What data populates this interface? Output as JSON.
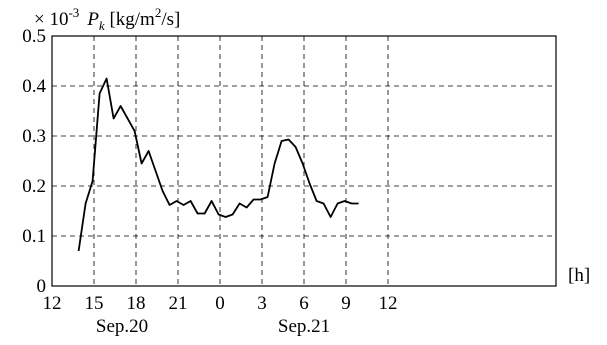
{
  "chart_data": {
    "type": "line",
    "ylabel": {
      "multiplier_symbol": "× 10",
      "multiplier_exponent": "-3",
      "variable": "P",
      "variable_subscript": "k",
      "unit_prefix": " [kg/m",
      "unit_exponent": "2",
      "unit_suffix": "/s]"
    },
    "xlabel": "[h]",
    "xlim": [
      12,
      48
    ],
    "ylim": [
      0,
      0.5
    ],
    "x_ticks": [
      {
        "value": 12,
        "label": "12"
      },
      {
        "value": 15,
        "label": "15"
      },
      {
        "value": 18,
        "label": "18"
      },
      {
        "value": 21,
        "label": "21"
      },
      {
        "value": 24,
        "label": "0"
      },
      {
        "value": 27,
        "label": "3"
      },
      {
        "value": 30,
        "label": "6"
      },
      {
        "value": 33,
        "label": "9"
      },
      {
        "value": 36,
        "label": "12"
      }
    ],
    "y_ticks": [
      {
        "value": 0,
        "label": "0"
      },
      {
        "value": 0.1,
        "label": "0.1"
      },
      {
        "value": 0.2,
        "label": "0.2"
      },
      {
        "value": 0.3,
        "label": "0.3"
      },
      {
        "value": 0.4,
        "label": "0.4"
      },
      {
        "value": 0.5,
        "label": "0.5"
      }
    ],
    "date_labels": [
      {
        "at": 17,
        "label": "Sep.20"
      },
      {
        "at": 30,
        "label": "Sep.21"
      }
    ],
    "grid": true,
    "series": [
      {
        "x": [
          13.9,
          14.4,
          14.9,
          15.4,
          15.9,
          16.4,
          16.9,
          17.4,
          17.9,
          18.4,
          18.9,
          19.4,
          19.9,
          20.4,
          20.9,
          21.4,
          21.9,
          22.4,
          22.9,
          23.4,
          23.9,
          24.4,
          24.9,
          25.4,
          25.9,
          26.4,
          26.9,
          27.4,
          27.9,
          28.4,
          28.9,
          29.4,
          29.9,
          30.4,
          30.9,
          31.4,
          31.9,
          32.4,
          32.9,
          33.4,
          33.9
        ],
        "y": [
          0.07,
          0.165,
          0.21,
          0.385,
          0.415,
          0.335,
          0.36,
          0.335,
          0.31,
          0.245,
          0.27,
          0.23,
          0.19,
          0.162,
          0.17,
          0.162,
          0.17,
          0.145,
          0.145,
          0.17,
          0.143,
          0.138,
          0.143,
          0.165,
          0.157,
          0.173,
          0.173,
          0.178,
          0.245,
          0.29,
          0.293,
          0.278,
          0.245,
          0.205,
          0.17,
          0.165,
          0.138,
          0.165,
          0.17,
          0.165,
          0.165
        ]
      }
    ]
  }
}
